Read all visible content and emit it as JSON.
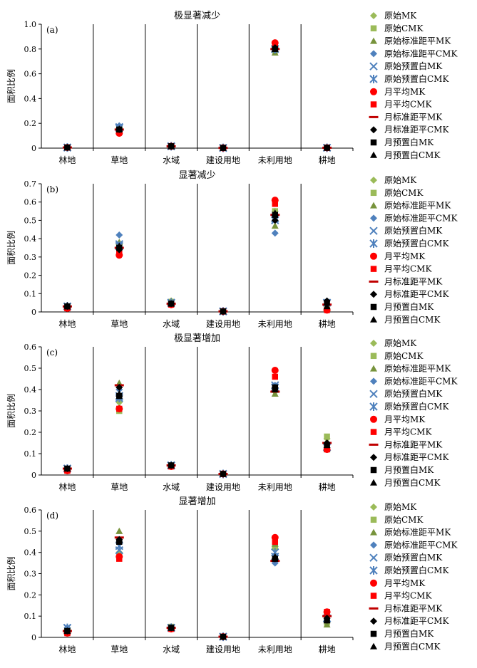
{
  "chart_data": [
    {
      "type": "scatter",
      "panel_label": "(a)",
      "title": "极显著减少",
      "ylabel": "面积比例",
      "categories": [
        "林地",
        "草地",
        "水域",
        "建设用地",
        "未利用地",
        "耕地"
      ],
      "ylim": [
        0,
        1.0
      ],
      "yticks": [
        "0",
        "0.2",
        "0.4",
        "0.6",
        "0.8",
        "1.0"
      ],
      "grid": false,
      "legend_position": "right",
      "series": [
        {
          "name": "原始MK",
          "marker": "diamond",
          "color": "#9bbb59",
          "values": [
            0.005,
            0.17,
            0.015,
            0.002,
            0.78,
            0.003
          ]
        },
        {
          "name": "原始CMK",
          "marker": "square",
          "color": "#9bbb59",
          "values": [
            0.005,
            0.16,
            0.015,
            0.002,
            0.79,
            0.003
          ]
        },
        {
          "name": "原始标准距平MK",
          "marker": "triangle",
          "color": "#77933c",
          "values": [
            0.005,
            0.18,
            0.015,
            0.002,
            0.77,
            0.003
          ]
        },
        {
          "name": "原始标准距平CMK",
          "marker": "diamond",
          "color": "#4f81bd",
          "values": [
            0.005,
            0.18,
            0.015,
            0.002,
            0.79,
            0.003
          ]
        },
        {
          "name": "原始预置白MK",
          "marker": "x",
          "color": "#4f81bd",
          "values": [
            0.005,
            0.17,
            0.015,
            0.002,
            0.8,
            0.003
          ]
        },
        {
          "name": "原始预置白CMK",
          "marker": "star",
          "color": "#4f81bd",
          "values": [
            0.005,
            0.165,
            0.015,
            0.002,
            0.8,
            0.003
          ]
        },
        {
          "name": "月平均MK",
          "marker": "circle",
          "color": "#ff0000",
          "values": [
            0.005,
            0.12,
            0.015,
            0.002,
            0.85,
            0.003
          ]
        },
        {
          "name": "月平均CMK",
          "marker": "square",
          "color": "#ff0000",
          "values": [
            0.005,
            0.14,
            0.015,
            0.002,
            0.83,
            0.003
          ]
        },
        {
          "name": "月标准距平MK",
          "marker": "dash",
          "color": "#c00000",
          "values": [
            0.005,
            0.15,
            0.015,
            0.002,
            0.8,
            0.003
          ]
        },
        {
          "name": "月标准距平CMK",
          "marker": "diamond",
          "color": "#000000",
          "values": [
            0.005,
            0.15,
            0.015,
            0.002,
            0.81,
            0.003
          ]
        },
        {
          "name": "月预置白MK",
          "marker": "square",
          "color": "#000000",
          "values": [
            0.005,
            0.15,
            0.015,
            0.002,
            0.8,
            0.003
          ]
        },
        {
          "name": "月预置白CMK",
          "marker": "triangle",
          "color": "#000000",
          "values": [
            0.005,
            0.155,
            0.015,
            0.002,
            0.8,
            0.003
          ]
        }
      ]
    },
    {
      "type": "scatter",
      "panel_label": "(b)",
      "title": "显著减少",
      "ylabel": "面积比例",
      "categories": [
        "林地",
        "草地",
        "水域",
        "建设用地",
        "未利用地",
        "耕地"
      ],
      "ylim": [
        0,
        0.7
      ],
      "yticks": [
        "0",
        "0.1",
        "0.2",
        "0.3",
        "0.4",
        "0.5",
        "0.6",
        "0.7"
      ],
      "grid": false,
      "legend_position": "right",
      "series": [
        {
          "name": "原始MK",
          "marker": "diamond",
          "color": "#9bbb59",
          "values": [
            0.03,
            0.37,
            0.06,
            0.003,
            0.55,
            0.02
          ]
        },
        {
          "name": "原始CMK",
          "marker": "square",
          "color": "#9bbb59",
          "values": [
            0.025,
            0.35,
            0.055,
            0.003,
            0.55,
            0.015
          ]
        },
        {
          "name": "原始标准距平MK",
          "marker": "triangle",
          "color": "#77933c",
          "values": [
            0.03,
            0.38,
            0.06,
            0.003,
            0.47,
            0.02
          ]
        },
        {
          "name": "原始标准距平CMK",
          "marker": "diamond",
          "color": "#4f81bd",
          "values": [
            0.035,
            0.42,
            0.05,
            0.003,
            0.43,
            0.06
          ]
        },
        {
          "name": "原始预置白MK",
          "marker": "x",
          "color": "#4f81bd",
          "values": [
            0.03,
            0.37,
            0.05,
            0.003,
            0.5,
            0.05
          ]
        },
        {
          "name": "原始预置白CMK",
          "marker": "star",
          "color": "#4f81bd",
          "values": [
            0.03,
            0.36,
            0.05,
            0.003,
            0.51,
            0.05
          ]
        },
        {
          "name": "月平均MK",
          "marker": "circle",
          "color": "#ff0000",
          "values": [
            0.02,
            0.31,
            0.04,
            0.003,
            0.61,
            0.01
          ]
        },
        {
          "name": "月平均CMK",
          "marker": "square",
          "color": "#ff0000",
          "values": [
            0.02,
            0.32,
            0.04,
            0.003,
            0.59,
            0.01
          ]
        },
        {
          "name": "月标准距平MK",
          "marker": "dash",
          "color": "#c00000",
          "values": [
            0.03,
            0.35,
            0.045,
            0.003,
            0.53,
            0.04
          ]
        },
        {
          "name": "月标准距平CMK",
          "marker": "diamond",
          "color": "#000000",
          "values": [
            0.03,
            0.34,
            0.045,
            0.003,
            0.5,
            0.06
          ]
        },
        {
          "name": "月预置白MK",
          "marker": "square",
          "color": "#000000",
          "values": [
            0.03,
            0.35,
            0.045,
            0.003,
            0.53,
            0.05
          ]
        },
        {
          "name": "月预置白CMK",
          "marker": "triangle",
          "color": "#000000",
          "values": [
            0.035,
            0.36,
            0.045,
            0.003,
            0.54,
            0.03
          ]
        }
      ]
    },
    {
      "type": "scatter",
      "panel_label": "(c)",
      "title": "极显著增加",
      "ylabel": "面积比例",
      "categories": [
        "林地",
        "草地",
        "水域",
        "建设用地",
        "未利用地",
        "耕地"
      ],
      "ylim": [
        0,
        0.6
      ],
      "yticks": [
        "0",
        "0.1",
        "0.2",
        "0.3",
        "0.4",
        "0.5",
        "0.6"
      ],
      "grid": false,
      "legend_position": "right",
      "series": [
        {
          "name": "原始MK",
          "marker": "diamond",
          "color": "#9bbb59",
          "values": [
            0.03,
            0.34,
            0.045,
            0.005,
            0.39,
            0.17
          ]
        },
        {
          "name": "原始CMK",
          "marker": "square",
          "color": "#9bbb59",
          "values": [
            0.025,
            0.3,
            0.045,
            0.005,
            0.41,
            0.18
          ]
        },
        {
          "name": "原始标准距平MK",
          "marker": "triangle",
          "color": "#77933c",
          "values": [
            0.03,
            0.43,
            0.045,
            0.005,
            0.38,
            0.12
          ]
        },
        {
          "name": "原始标准距平CMK",
          "marker": "diamond",
          "color": "#4f81bd",
          "values": [
            0.03,
            0.4,
            0.045,
            0.005,
            0.42,
            0.14
          ]
        },
        {
          "name": "原始预置白MK",
          "marker": "x",
          "color": "#4f81bd",
          "values": [
            0.03,
            0.37,
            0.045,
            0.005,
            0.42,
            0.13
          ]
        },
        {
          "name": "原始预置白CMK",
          "marker": "star",
          "color": "#4f81bd",
          "values": [
            0.03,
            0.36,
            0.045,
            0.005,
            0.41,
            0.13
          ]
        },
        {
          "name": "月平均MK",
          "marker": "circle",
          "color": "#ff0000",
          "values": [
            0.02,
            0.31,
            0.04,
            0.005,
            0.49,
            0.12
          ]
        },
        {
          "name": "月平均CMK",
          "marker": "square",
          "color": "#ff0000",
          "values": [
            0.02,
            0.31,
            0.04,
            0.005,
            0.46,
            0.12
          ]
        },
        {
          "name": "月标准距平MK",
          "marker": "dash",
          "color": "#c00000",
          "values": [
            0.03,
            0.42,
            0.045,
            0.005,
            0.39,
            0.15
          ]
        },
        {
          "name": "月标准距平CMK",
          "marker": "diamond",
          "color": "#000000",
          "values": [
            0.03,
            0.41,
            0.045,
            0.005,
            0.41,
            0.15
          ]
        },
        {
          "name": "月预置白MK",
          "marker": "square",
          "color": "#000000",
          "values": [
            0.03,
            0.37,
            0.045,
            0.005,
            0.41,
            0.14
          ]
        },
        {
          "name": "月预置白CMK",
          "marker": "triangle",
          "color": "#000000",
          "values": [
            0.03,
            0.38,
            0.045,
            0.005,
            0.4,
            0.14
          ]
        }
      ]
    },
    {
      "type": "scatter",
      "panel_label": "(d)",
      "title": "显著增加",
      "ylabel": "面积比例",
      "categories": [
        "林地",
        "草地",
        "水域",
        "建设用地",
        "未利用地",
        "耕地"
      ],
      "ylim": [
        0,
        0.6
      ],
      "yticks": [
        "0",
        "0.1",
        "0.2",
        "0.3",
        "0.4",
        "0.5",
        "0.6"
      ],
      "grid": false,
      "legend_position": "right",
      "series": [
        {
          "name": "原始MK",
          "marker": "diamond",
          "color": "#9bbb59",
          "values": [
            0.04,
            0.4,
            0.05,
            0.003,
            0.42,
            0.07
          ]
        },
        {
          "name": "原始CMK",
          "marker": "square",
          "color": "#9bbb59",
          "values": [
            0.035,
            0.38,
            0.05,
            0.003,
            0.43,
            0.07
          ]
        },
        {
          "name": "原始标准距平MK",
          "marker": "triangle",
          "color": "#77933c",
          "values": [
            0.04,
            0.5,
            0.05,
            0.003,
            0.44,
            0.06
          ]
        },
        {
          "name": "原始标准距平CMK",
          "marker": "diamond",
          "color": "#4f81bd",
          "values": [
            0.045,
            0.45,
            0.05,
            0.003,
            0.35,
            0.1
          ]
        },
        {
          "name": "原始预置白MK",
          "marker": "x",
          "color": "#4f81bd",
          "values": [
            0.045,
            0.41,
            0.045,
            0.003,
            0.38,
            0.09
          ]
        },
        {
          "name": "原始预置白CMK",
          "marker": "star",
          "color": "#4f81bd",
          "values": [
            0.045,
            0.43,
            0.045,
            0.003,
            0.4,
            0.09
          ]
        },
        {
          "name": "月平均MK",
          "marker": "circle",
          "color": "#ff0000",
          "values": [
            0.02,
            0.38,
            0.04,
            0.003,
            0.47,
            0.12
          ]
        },
        {
          "name": "月平均CMK",
          "marker": "square",
          "color": "#ff0000",
          "values": [
            0.02,
            0.37,
            0.04,
            0.003,
            0.45,
            0.12
          ]
        },
        {
          "name": "月标准距平MK",
          "marker": "dash",
          "color": "#c00000",
          "values": [
            0.03,
            0.47,
            0.045,
            0.003,
            0.36,
            0.1
          ]
        },
        {
          "name": "月标准距平CMK",
          "marker": "diamond",
          "color": "#000000",
          "values": [
            0.03,
            0.46,
            0.045,
            0.003,
            0.37,
            0.09
          ]
        },
        {
          "name": "月预置白MK",
          "marker": "square",
          "color": "#000000",
          "values": [
            0.03,
            0.45,
            0.045,
            0.003,
            0.37,
            0.08
          ]
        },
        {
          "name": "月预置白CMK",
          "marker": "triangle",
          "color": "#000000",
          "values": [
            0.03,
            0.46,
            0.045,
            0.003,
            0.38,
            0.08
          ]
        }
      ]
    }
  ]
}
